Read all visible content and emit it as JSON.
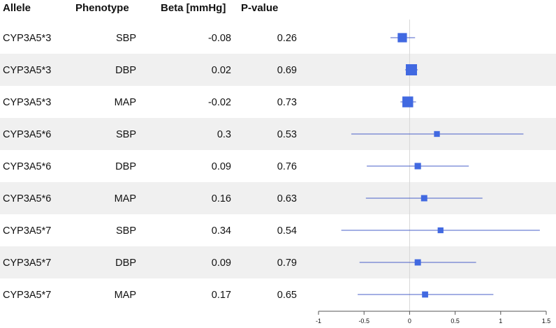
{
  "chart_data": {
    "type": "forest",
    "headers": {
      "allele": "Allele",
      "phenotype": "Phenotype",
      "beta": "Beta [mmHg]",
      "pvalue": "P-value"
    },
    "rows": [
      {
        "allele": "CYP3A5*3",
        "phenotype": "SBP",
        "beta_label": "-0.08",
        "p_label": "0.26",
        "estimate": -0.08,
        "ci_low": -0.21,
        "ci_high": 0.06,
        "weight": 0.75,
        "shaded": false
      },
      {
        "allele": "CYP3A5*3",
        "phenotype": "DBP",
        "beta_label": "0.02",
        "p_label": "0.69",
        "estimate": 0.02,
        "ci_low": -0.05,
        "ci_high": 0.09,
        "weight": 1.0,
        "shaded": true
      },
      {
        "allele": "CYP3A5*3",
        "phenotype": "MAP",
        "beta_label": "-0.02",
        "p_label": "0.73",
        "estimate": -0.02,
        "ci_low": -0.1,
        "ci_high": 0.07,
        "weight": 0.95,
        "shaded": false
      },
      {
        "allele": "CYP3A5*6",
        "phenotype": "SBP",
        "beta_label": "0.3",
        "p_label": "0.53",
        "estimate": 0.3,
        "ci_low": -0.64,
        "ci_high": 1.25,
        "weight": 0.3,
        "shaded": true
      },
      {
        "allele": "CYP3A5*6",
        "phenotype": "DBP",
        "beta_label": "0.09",
        "p_label": "0.76",
        "estimate": 0.09,
        "ci_low": -0.47,
        "ci_high": 0.65,
        "weight": 0.38,
        "shaded": false
      },
      {
        "allele": "CYP3A5*6",
        "phenotype": "MAP",
        "beta_label": "0.16",
        "p_label": "0.63",
        "estimate": 0.16,
        "ci_low": -0.48,
        "ci_high": 0.8,
        "weight": 0.36,
        "shaded": true
      },
      {
        "allele": "CYP3A5*7",
        "phenotype": "SBP",
        "beta_label": "0.34",
        "p_label": "0.54",
        "estimate": 0.34,
        "ci_low": -0.75,
        "ci_high": 1.43,
        "weight": 0.3,
        "shaded": false
      },
      {
        "allele": "CYP3A5*7",
        "phenotype": "DBP",
        "beta_label": "0.09",
        "p_label": "0.79",
        "estimate": 0.09,
        "ci_low": -0.55,
        "ci_high": 0.73,
        "weight": 0.36,
        "shaded": true
      },
      {
        "allele": "CYP3A5*7",
        "phenotype": "MAP",
        "beta_label": "0.17",
        "p_label": "0.65",
        "estimate": 0.17,
        "ci_low": -0.57,
        "ci_high": 0.92,
        "weight": 0.34,
        "shaded": false
      }
    ],
    "x_axis": {
      "xlim": [
        -1,
        1.5
      ],
      "ticks": [
        -1,
        -0.5,
        0,
        0.5,
        1,
        1.5
      ],
      "tick_labels": [
        "-1",
        "-0.5",
        "0",
        "0.5",
        "1",
        "1.5"
      ],
      "reference_line": 0
    },
    "colors": {
      "marker": "#4169E1",
      "ci_line": "#4a5fc8",
      "shade": "#f0f0f0",
      "ref_line": "#d6d6d6",
      "axis": "#555555"
    }
  }
}
